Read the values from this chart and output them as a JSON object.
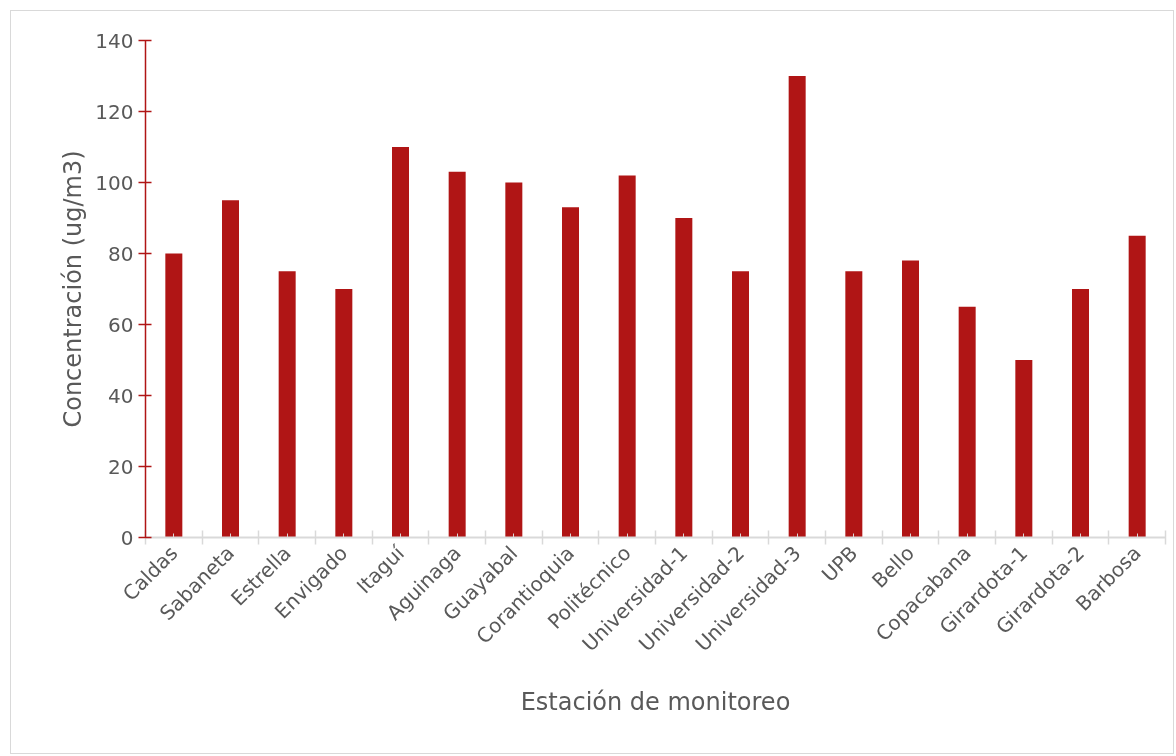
{
  "chart_data": {
    "type": "bar",
    "xlabel": "Estación de monitoreo",
    "ylabel": "Concentración (ug/m3)",
    "categories": [
      "Caldas",
      "Sabaneta",
      "Estrella",
      "Envigado",
      "Itaguí",
      "Aguinaga",
      "Guayabal",
      "Corantioquia",
      "Politécnico",
      "Universidad-1",
      "Universidad-2",
      "Universidad-3",
      "UPB",
      "Bello",
      "Copacabana",
      "Girardota-1",
      "Girardota-2",
      "Barbosa"
    ],
    "values": [
      80,
      95,
      75,
      70,
      110,
      103,
      100,
      93,
      102,
      90,
      75,
      130,
      75,
      78,
      65,
      50,
      70,
      85
    ],
    "color": "#b01515",
    "ylim": [
      0,
      140
    ],
    "yticks": [
      0,
      20,
      40,
      60,
      80,
      100,
      120,
      140
    ]
  }
}
